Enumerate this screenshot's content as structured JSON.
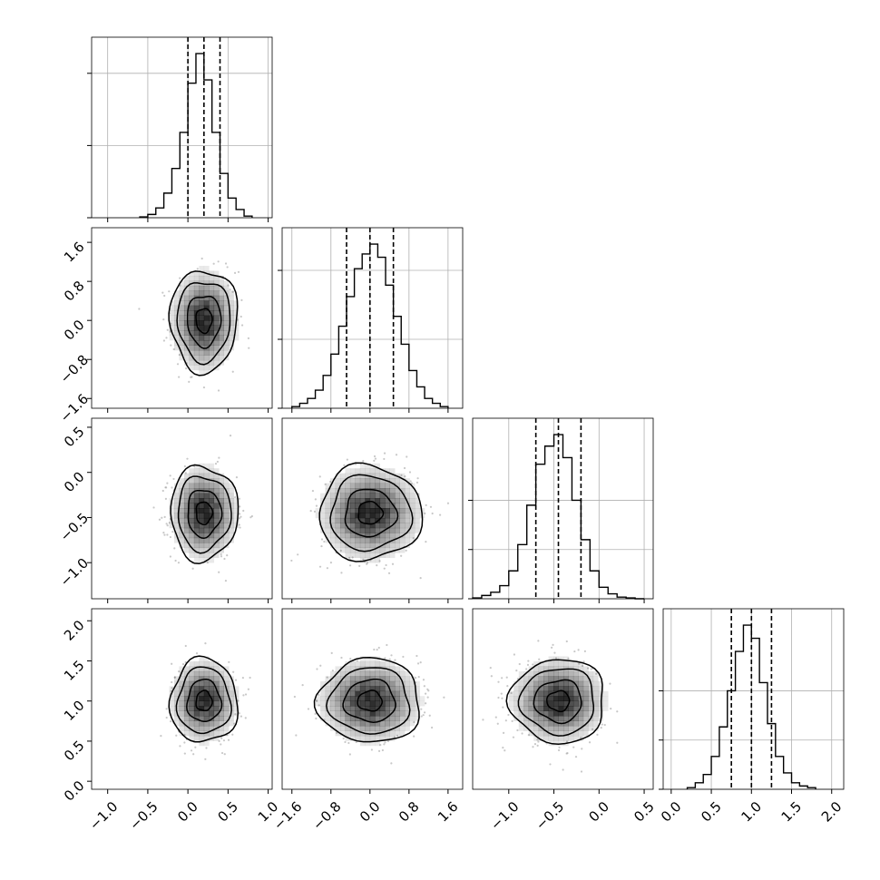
{
  "chart_data": {
    "type": "corner",
    "parameters": [
      {
        "index": 0,
        "range": [
          -1.2,
          1.05
        ],
        "ticks": [
          -1.0,
          -0.5,
          0.0,
          0.5,
          1.0
        ],
        "tick_labels": [
          "−1.0",
          "−0.5",
          "0.0",
          "0.5",
          "1.0"
        ],
        "quantiles": [
          0.0,
          0.2,
          0.4
        ],
        "hist": {
          "bin_edges": [
            -0.6,
            -0.5,
            -0.4,
            -0.3,
            -0.2,
            -0.1,
            0.0,
            0.1,
            0.2,
            0.3,
            0.4,
            0.5,
            0.6,
            0.7,
            0.8
          ],
          "counts": [
            0.005,
            0.02,
            0.06,
            0.15,
            0.3,
            0.52,
            0.82,
            1.0,
            0.84,
            0.52,
            0.27,
            0.12,
            0.05,
            0.01
          ]
        },
        "hist_yticks": [
          0.0,
          0.44,
          0.88
        ]
      },
      {
        "index": 1,
        "range": [
          -1.8,
          1.9
        ],
        "ticks": [
          -1.6,
          -0.8,
          0.0,
          0.8,
          1.6
        ],
        "tick_labels": [
          "−1.6",
          "−0.8",
          "0.0",
          "0.8",
          "1.6"
        ],
        "quantiles": [
          -0.48,
          0.0,
          0.48
        ],
        "hist": {
          "bin_edges": [
            -1.6,
            -1.44,
            -1.28,
            -1.12,
            -0.96,
            -0.8,
            -0.64,
            -0.48,
            -0.32,
            -0.16,
            0.0,
            0.16,
            0.32,
            0.48,
            0.64,
            0.8,
            0.96,
            1.12,
            1.28,
            1.44,
            1.6
          ],
          "counts": [
            0.01,
            0.03,
            0.06,
            0.11,
            0.2,
            0.33,
            0.5,
            0.68,
            0.85,
            0.94,
            1.0,
            0.92,
            0.75,
            0.56,
            0.39,
            0.23,
            0.13,
            0.06,
            0.03,
            0.01
          ]
        },
        "hist_yticks": [
          0.0,
          0.42,
          0.84
        ]
      },
      {
        "index": 2,
        "range": [
          -1.4,
          0.6
        ],
        "ticks": [
          -1.0,
          -0.5,
          0.0,
          0.5
        ],
        "tick_labels": [
          "−1.0",
          "−0.5",
          "0.0",
          "0.5"
        ],
        "quantiles": [
          -0.7,
          -0.45,
          -0.2
        ],
        "hist": {
          "bin_edges": [
            -1.4,
            -1.3,
            -1.2,
            -1.1,
            -1.0,
            -0.9,
            -0.8,
            -0.7,
            -0.6,
            -0.5,
            -0.4,
            -0.3,
            -0.2,
            -0.1,
            0.0,
            0.1,
            0.2,
            0.3,
            0.4,
            0.5
          ],
          "counts": [
            0.005,
            0.02,
            0.04,
            0.08,
            0.17,
            0.33,
            0.57,
            0.82,
            0.93,
            1.0,
            0.86,
            0.6,
            0.36,
            0.17,
            0.07,
            0.03,
            0.01,
            0.005,
            0.0
          ]
        },
        "hist_yticks": [
          0.0,
          0.3,
          0.6
        ]
      },
      {
        "index": 3,
        "range": [
          -0.1,
          2.15
        ],
        "ticks": [
          0.0,
          0.5,
          1.0,
          1.5,
          2.0
        ],
        "tick_labels": [
          "0.0",
          "0.5",
          "1.0",
          "1.5",
          "2.0"
        ],
        "quantiles": [
          0.75,
          1.0,
          1.25
        ],
        "hist": {
          "bin_edges": [
            0.2,
            0.3,
            0.4,
            0.5,
            0.6,
            0.7,
            0.8,
            0.9,
            1.0,
            1.1,
            1.2,
            1.3,
            1.4,
            1.5,
            1.6,
            1.7,
            1.8
          ],
          "counts": [
            0.01,
            0.04,
            0.09,
            0.2,
            0.38,
            0.6,
            0.84,
            1.0,
            0.92,
            0.65,
            0.4,
            0.2,
            0.1,
            0.04,
            0.02,
            0.01
          ]
        },
        "hist_yticks": [
          0.0,
          0.3,
          0.6
        ]
      }
    ],
    "pairs": [
      {
        "x": 0,
        "y": 1,
        "center": [
          0.2,
          0.0
        ],
        "sigma": [
          0.2,
          0.5
        ]
      },
      {
        "x": 0,
        "y": 2,
        "center": [
          0.2,
          -0.45
        ],
        "sigma": [
          0.2,
          0.25
        ]
      },
      {
        "x": 1,
        "y": 2,
        "center": [
          0.0,
          -0.45
        ],
        "sigma": [
          0.5,
          0.25
        ]
      },
      {
        "x": 0,
        "y": 3,
        "center": [
          0.2,
          1.0
        ],
        "sigma": [
          0.2,
          0.25
        ]
      },
      {
        "x": 1,
        "y": 3,
        "center": [
          0.0,
          1.0
        ],
        "sigma": [
          0.5,
          0.25
        ]
      },
      {
        "x": 2,
        "y": 3,
        "center": [
          -0.45,
          1.0
        ],
        "sigma": [
          0.25,
          0.25
        ]
      }
    ],
    "grid": true,
    "colors": {
      "line": "#000000",
      "grid": "#b0b0b0",
      "density": "#000000",
      "scatter": "#9a9a9a"
    }
  }
}
